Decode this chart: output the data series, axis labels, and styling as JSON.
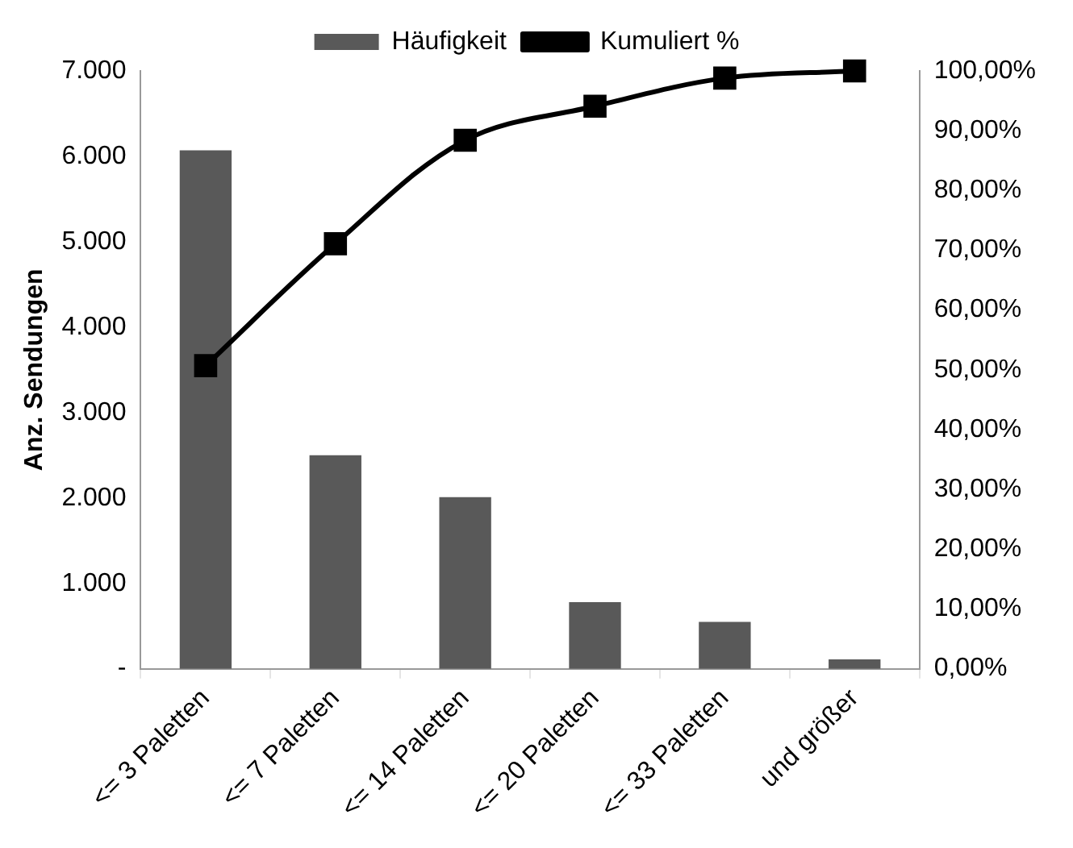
{
  "chart_data": {
    "type": "bar",
    "ylabel": "Anz. Sendungen",
    "categories": [
      "<= 3 Paletten",
      "<= 7 Paletten",
      "<= 14 Paletten",
      "<= 20 Paletten",
      "<= 33 Paletten",
      "und größer"
    ],
    "series": [
      {
        "name": "Häufigkeit",
        "color": "#595959",
        "values": [
          6070,
          2500,
          2010,
          780,
          550,
          110
        ]
      },
      {
        "name": "Kumuliert %",
        "type": "line",
        "axis": "y2",
        "color": "#000000",
        "marker": "square",
        "values": [
          50.7,
          71.1,
          88.4,
          94.1,
          98.8,
          100
        ]
      }
    ],
    "ylim": [
      0,
      7000
    ],
    "yticks": [
      {
        "value": 0,
        "label": "-"
      },
      {
        "value": 1000,
        "label": "1.000"
      },
      {
        "value": 2000,
        "label": "2.000"
      },
      {
        "value": 3000,
        "label": "3.000"
      },
      {
        "value": 4000,
        "label": "4.000"
      },
      {
        "value": 5000,
        "label": "5.000"
      },
      {
        "value": 6000,
        "label": "6.000"
      },
      {
        "value": 7000,
        "label": "7.000"
      }
    ],
    "y2lim": [
      0,
      100
    ],
    "y2ticks": [
      {
        "value": 0,
        "label": "0,00%"
      },
      {
        "value": 10,
        "label": "10,00%"
      },
      {
        "value": 20,
        "label": "20,00%"
      },
      {
        "value": 30,
        "label": "30,00%"
      },
      {
        "value": 40,
        "label": "40,00%"
      },
      {
        "value": 50,
        "label": "50,00%"
      },
      {
        "value": 60,
        "label": "60,00%"
      },
      {
        "value": 70,
        "label": "70,00%"
      },
      {
        "value": 80,
        "label": "80,00%"
      },
      {
        "value": 90,
        "label": "90,00%"
      },
      {
        "value": 100,
        "label": "100,00%"
      }
    ],
    "grid": false,
    "legend": "top"
  }
}
